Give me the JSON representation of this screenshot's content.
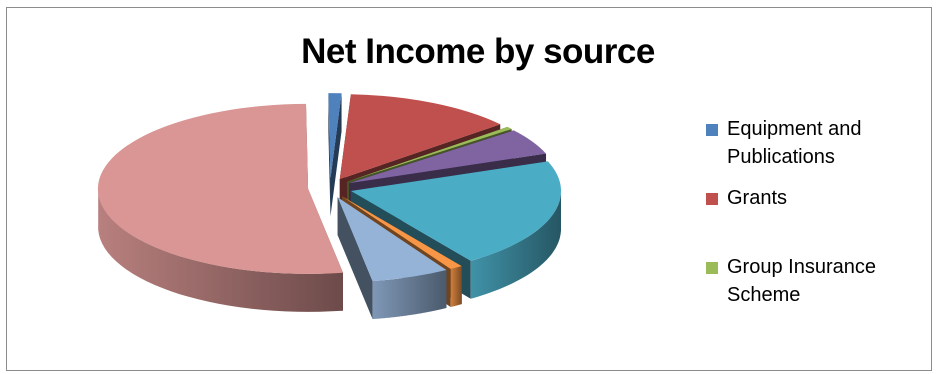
{
  "chart_data": {
    "type": "pie",
    "title": "Net Income by source",
    "three_d": true,
    "exploded": true,
    "legend_position": "right",
    "slices": [
      {
        "label": "Equipment and Publications",
        "value": 1,
        "color": "#4f81bd"
      },
      {
        "label": "Grants",
        "value": 13,
        "color": "#c0504d"
      },
      {
        "label": "Group Insurance Scheme",
        "value": 0.5,
        "color": "#9bbb59"
      },
      {
        "label": "",
        "value": 5,
        "color": "#8064a2"
      },
      {
        "label": "",
        "value": 21,
        "color": "#4bacc6"
      },
      {
        "label": "",
        "value": 1,
        "color": "#f79646"
      },
      {
        "label": "",
        "value": 6,
        "color": "#95b3d7"
      },
      {
        "label": "",
        "value": 52.5,
        "color": "#d99694"
      }
    ]
  }
}
